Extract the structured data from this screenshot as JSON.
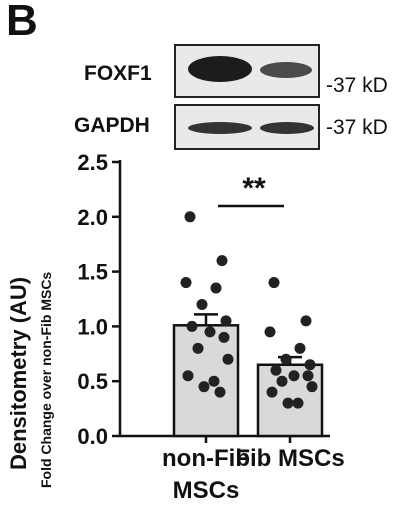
{
  "panel_label": "B",
  "western_blot": {
    "rows": [
      {
        "protein": "FOXF1",
        "size_label": "-37 kD"
      },
      {
        "protein": "GAPDH",
        "size_label": "-37 kD"
      }
    ]
  },
  "chart_data": {
    "type": "bar",
    "categories": [
      "non-Fib\nMSCs",
      "Fib MSCs"
    ],
    "values": [
      1.01,
      0.65
    ],
    "error_sem": [
      0.1,
      0.07
    ],
    "points": [
      [
        2.0,
        1.6,
        1.4,
        1.35,
        1.2,
        1.05,
        1.0,
        0.95,
        0.9,
        0.8,
        0.7,
        0.55,
        0.5,
        0.45,
        0.4
      ],
      [
        1.4,
        1.05,
        0.95,
        0.8,
        0.7,
        0.65,
        0.6,
        0.55,
        0.55,
        0.5,
        0.45,
        0.4,
        0.3,
        0.3
      ]
    ],
    "ylabel": "Densitometry (AU)",
    "ylabel_sub": "Fold Change over non-Fib MSCs",
    "ylim": [
      0,
      2.5
    ],
    "yticks": [
      "0.0",
      "0.5",
      "1.0",
      "1.5",
      "2.0",
      "2.5"
    ],
    "significance": "**",
    "bar_color": "#d9d9d9",
    "point_color": "#222222"
  }
}
